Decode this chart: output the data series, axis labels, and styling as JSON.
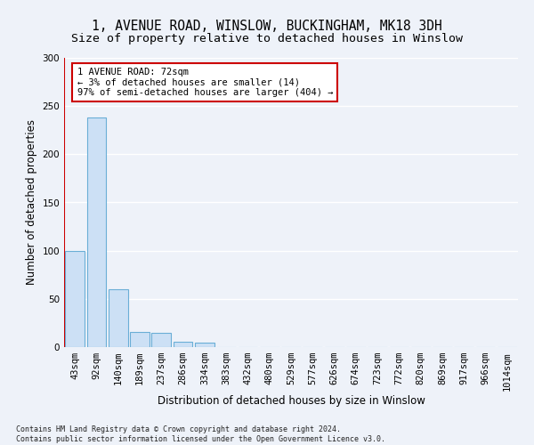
{
  "title_line1": "1, AVENUE ROAD, WINSLOW, BUCKINGHAM, MK18 3DH",
  "title_line2": "Size of property relative to detached houses in Winslow",
  "xlabel": "Distribution of detached houses by size in Winslow",
  "ylabel": "Number of detached properties",
  "footnote": "Contains HM Land Registry data © Crown copyright and database right 2024.\nContains public sector information licensed under the Open Government Licence v3.0.",
  "bin_labels": [
    "43sqm",
    "92sqm",
    "140sqm",
    "189sqm",
    "237sqm",
    "286sqm",
    "334sqm",
    "383sqm",
    "432sqm",
    "480sqm",
    "529sqm",
    "577sqm",
    "626sqm",
    "674sqm",
    "723sqm",
    "772sqm",
    "820sqm",
    "869sqm",
    "917sqm",
    "966sqm",
    "1014sqm"
  ],
  "bar_values": [
    100,
    238,
    60,
    16,
    15,
    6,
    5,
    0,
    0,
    0,
    0,
    0,
    0,
    0,
    0,
    0,
    0,
    0,
    0,
    0,
    0
  ],
  "bar_color": "#cce0f5",
  "bar_edge_color": "#6aaed6",
  "property_line_x": -0.5,
  "property_line_color": "#cc0000",
  "annotation_text": "1 AVENUE ROAD: 72sqm\n← 3% of detached houses are smaller (14)\n97% of semi-detached houses are larger (404) →",
  "annotation_box_color": "#ffffff",
  "annotation_box_edge_color": "#cc0000",
  "ylim": [
    0,
    300
  ],
  "yticks": [
    0,
    50,
    100,
    150,
    200,
    250,
    300
  ],
  "background_color": "#eef2f9",
  "grid_color": "#ffffff",
  "title_fontsize": 10.5,
  "subtitle_fontsize": 9.5,
  "axis_label_fontsize": 8.5,
  "tick_fontsize": 7.5,
  "annotation_fontsize": 7.5,
  "footnote_fontsize": 6.0
}
